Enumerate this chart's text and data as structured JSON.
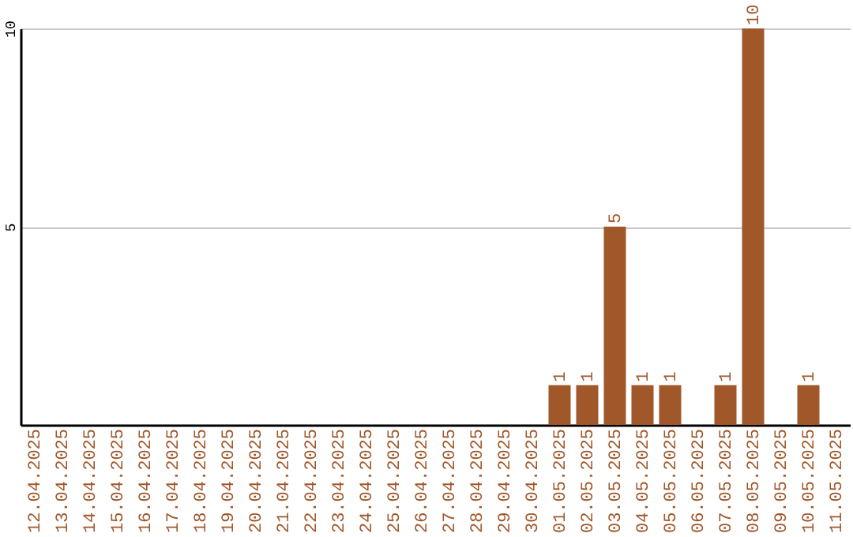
{
  "chart_data": {
    "type": "bar",
    "categories": [
      "12.04.2025",
      "13.04.2025",
      "14.04.2025",
      "15.04.2025",
      "16.04.2025",
      "17.04.2025",
      "18.04.2025",
      "19.04.2025",
      "20.04.2025",
      "21.04.2025",
      "22.04.2025",
      "23.04.2025",
      "24.04.2025",
      "25.04.2025",
      "26.04.2025",
      "27.04.2025",
      "28.04.2025",
      "29.04.2025",
      "30.04.2025",
      "01.05.2025",
      "02.05.2025",
      "03.05.2025",
      "04.05.2025",
      "05.05.2025",
      "06.05.2025",
      "07.05.2025",
      "08.05.2025",
      "09.05.2025",
      "10.05.2025",
      "11.05.2025"
    ],
    "values": [
      0,
      0,
      0,
      0,
      0,
      0,
      0,
      0,
      0,
      0,
      0,
      0,
      0,
      0,
      0,
      0,
      0,
      0,
      0,
      1,
      1,
      5,
      1,
      1,
      0,
      1,
      10,
      0,
      1,
      0
    ],
    "value_labels": [
      null,
      null,
      null,
      null,
      null,
      null,
      null,
      null,
      null,
      null,
      null,
      null,
      null,
      null,
      null,
      null,
      null,
      null,
      null,
      "1",
      "1",
      "5",
      "1",
      "1",
      null,
      "1",
      "10",
      null,
      "1",
      null
    ],
    "color": "#a0572a",
    "ylim": [
      0,
      10
    ],
    "yticks": [
      5,
      10
    ],
    "grid": "y"
  }
}
